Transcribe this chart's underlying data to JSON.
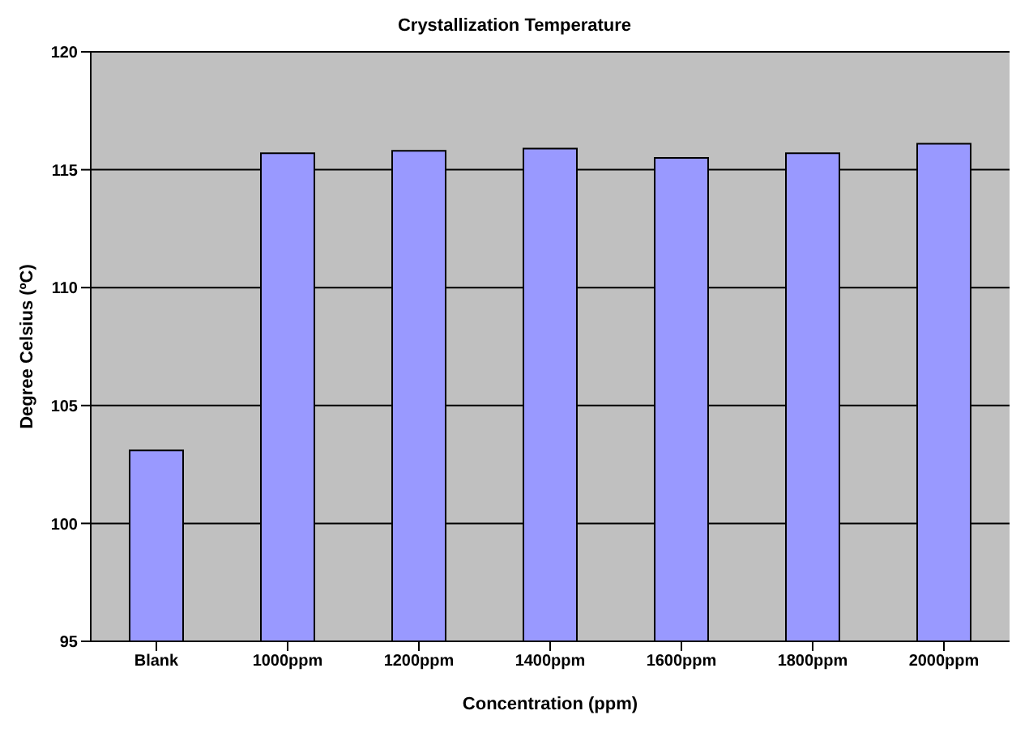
{
  "chart_data": {
    "type": "bar",
    "title": "Crystallization Temperature",
    "xlabel": "Concentration (ppm)",
    "ylabel": "Degree Celsius (ºC)",
    "categories": [
      "Blank",
      "1000ppm",
      "1200ppm",
      "1400ppm",
      "1600ppm",
      "1800ppm",
      "2000ppm"
    ],
    "values": [
      103.1,
      115.7,
      115.8,
      115.9,
      115.5,
      115.7,
      116.1
    ],
    "color": "#9999ff",
    "ylim": [
      95,
      120
    ],
    "yticks": [
      95,
      100,
      105,
      110,
      115,
      120
    ],
    "grid": "y",
    "legend": false
  }
}
